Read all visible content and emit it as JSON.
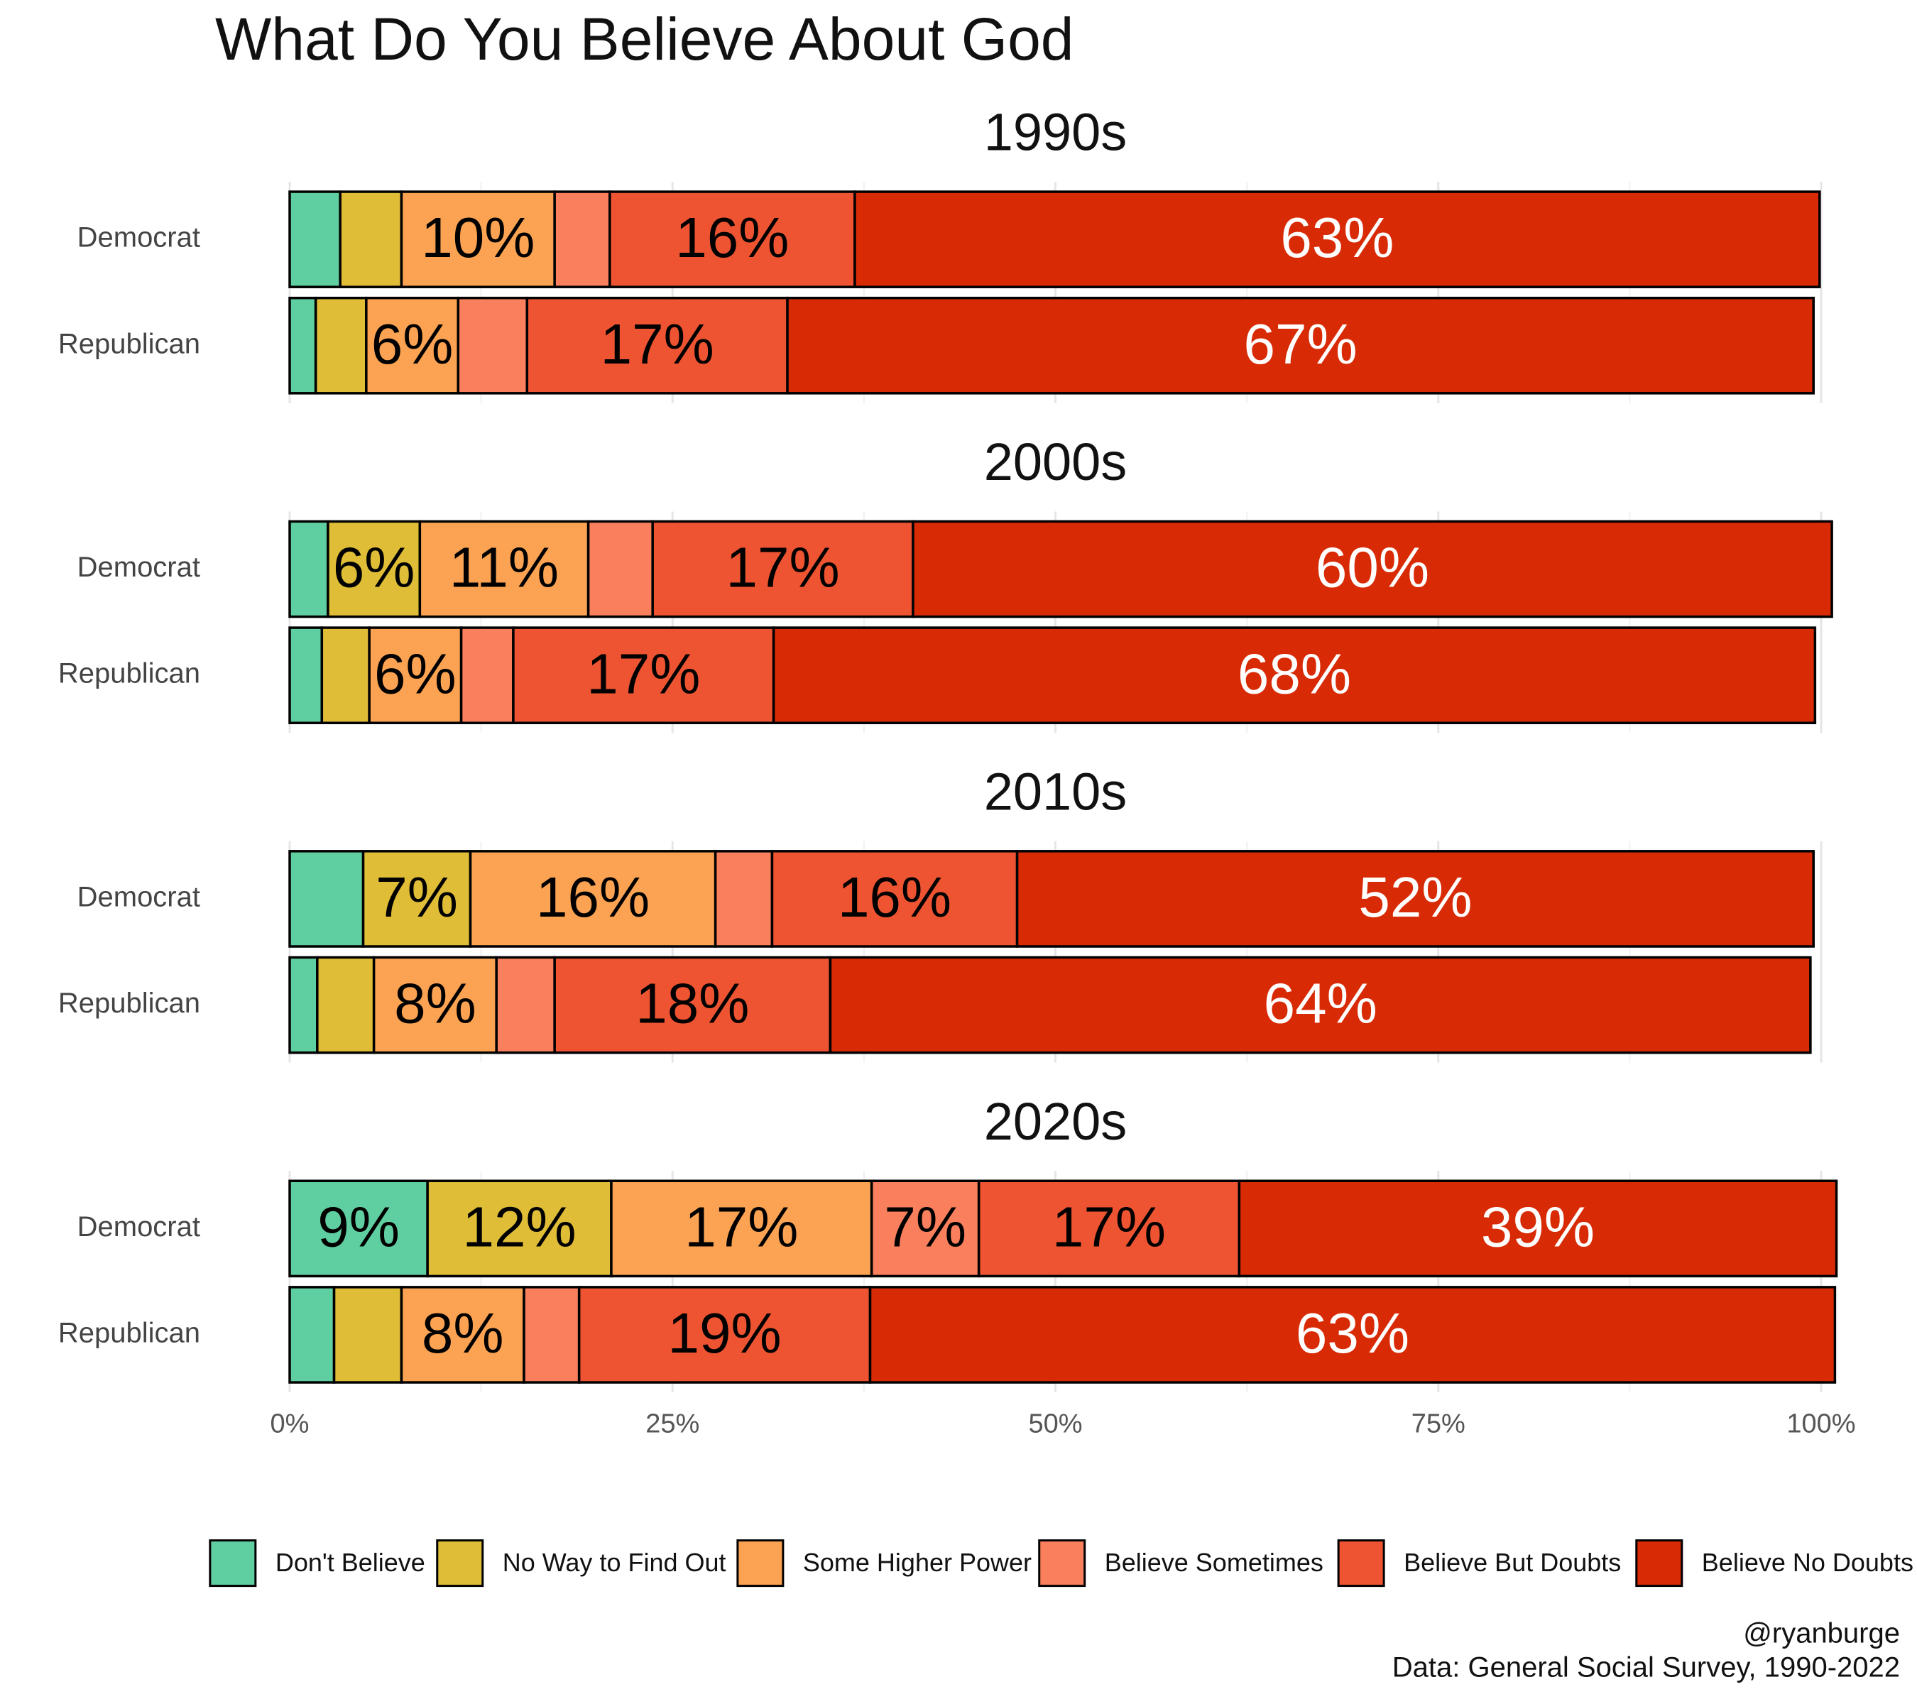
{
  "chart_data": {
    "type": "bar",
    "orientation": "horizontal",
    "stacked": true,
    "title": "What Do You Believe About God",
    "xlim": [
      0,
      100
    ],
    "xticks": [
      {
        "value": 0,
        "label": "0%"
      },
      {
        "value": 25,
        "label": "25%"
      },
      {
        "value": 50,
        "label": "50%"
      },
      {
        "value": 75,
        "label": "75%"
      },
      {
        "value": 100,
        "label": "100%"
      }
    ],
    "grid": true,
    "legend": "bottom",
    "series": [
      {
        "name": "Don't Believe",
        "color": "#5fcfa1",
        "label_color": "#000000"
      },
      {
        "name": "No Way to Find Out",
        "color": "#dfbd37",
        "label_color": "#000000"
      },
      {
        "name": "Some Higher Power",
        "color": "#fba352",
        "label_color": "#000000"
      },
      {
        "name": "Believe Sometimes",
        "color": "#f97f5d",
        "label_color": "#000000"
      },
      {
        "name": "Believe But Doubts",
        "color": "#ee5431",
        "label_color": "#000000"
      },
      {
        "name": "Believe No Doubts",
        "color": "#d82b05",
        "label_color": "#ffffff"
      }
    ],
    "facets": [
      {
        "title": "1990s",
        "categories": [
          "Democrat",
          "Republican"
        ],
        "values": [
          [
            3.3,
            4.0,
            10,
            3.6,
            16,
            63
          ],
          [
            1.7,
            3.3,
            6,
            4.5,
            17,
            67
          ]
        ],
        "value_labels": [
          [
            null,
            null,
            "10%",
            null,
            "16%",
            "63%"
          ],
          [
            null,
            null,
            "6%",
            null,
            "17%",
            "67%"
          ]
        ]
      },
      {
        "title": "2000s",
        "categories": [
          "Democrat",
          "Republican"
        ],
        "values": [
          [
            2.5,
            6,
            11,
            4.2,
            17,
            60
          ],
          [
            2.1,
            3.1,
            6,
            3.4,
            17,
            68
          ]
        ],
        "value_labels": [
          [
            null,
            "6%",
            "11%",
            null,
            "17%",
            "60%"
          ],
          [
            null,
            null,
            "6%",
            null,
            "17%",
            "68%"
          ]
        ]
      },
      {
        "title": "2010s",
        "categories": [
          "Democrat",
          "Republican"
        ],
        "values": [
          [
            4.8,
            7,
            16,
            3.7,
            16,
            52
          ],
          [
            1.8,
            3.7,
            8,
            3.8,
            18,
            64
          ]
        ],
        "value_labels": [
          [
            null,
            "7%",
            "16%",
            null,
            "16%",
            "52%"
          ],
          [
            null,
            null,
            "8%",
            null,
            "18%",
            "64%"
          ]
        ]
      },
      {
        "title": "2020s",
        "categories": [
          "Democrat",
          "Republican"
        ],
        "values": [
          [
            9,
            12,
            17,
            7,
            17,
            39
          ],
          [
            2.9,
            4.4,
            8,
            3.6,
            19,
            63
          ]
        ],
        "value_labels": [
          [
            "9%",
            "12%",
            "17%",
            "7%",
            "17%",
            "39%"
          ],
          [
            null,
            null,
            "8%",
            null,
            "19%",
            "63%"
          ]
        ]
      }
    ],
    "caption": [
      "@ryanburge",
      "Data: General Social Survey, 1990-2022"
    ]
  }
}
